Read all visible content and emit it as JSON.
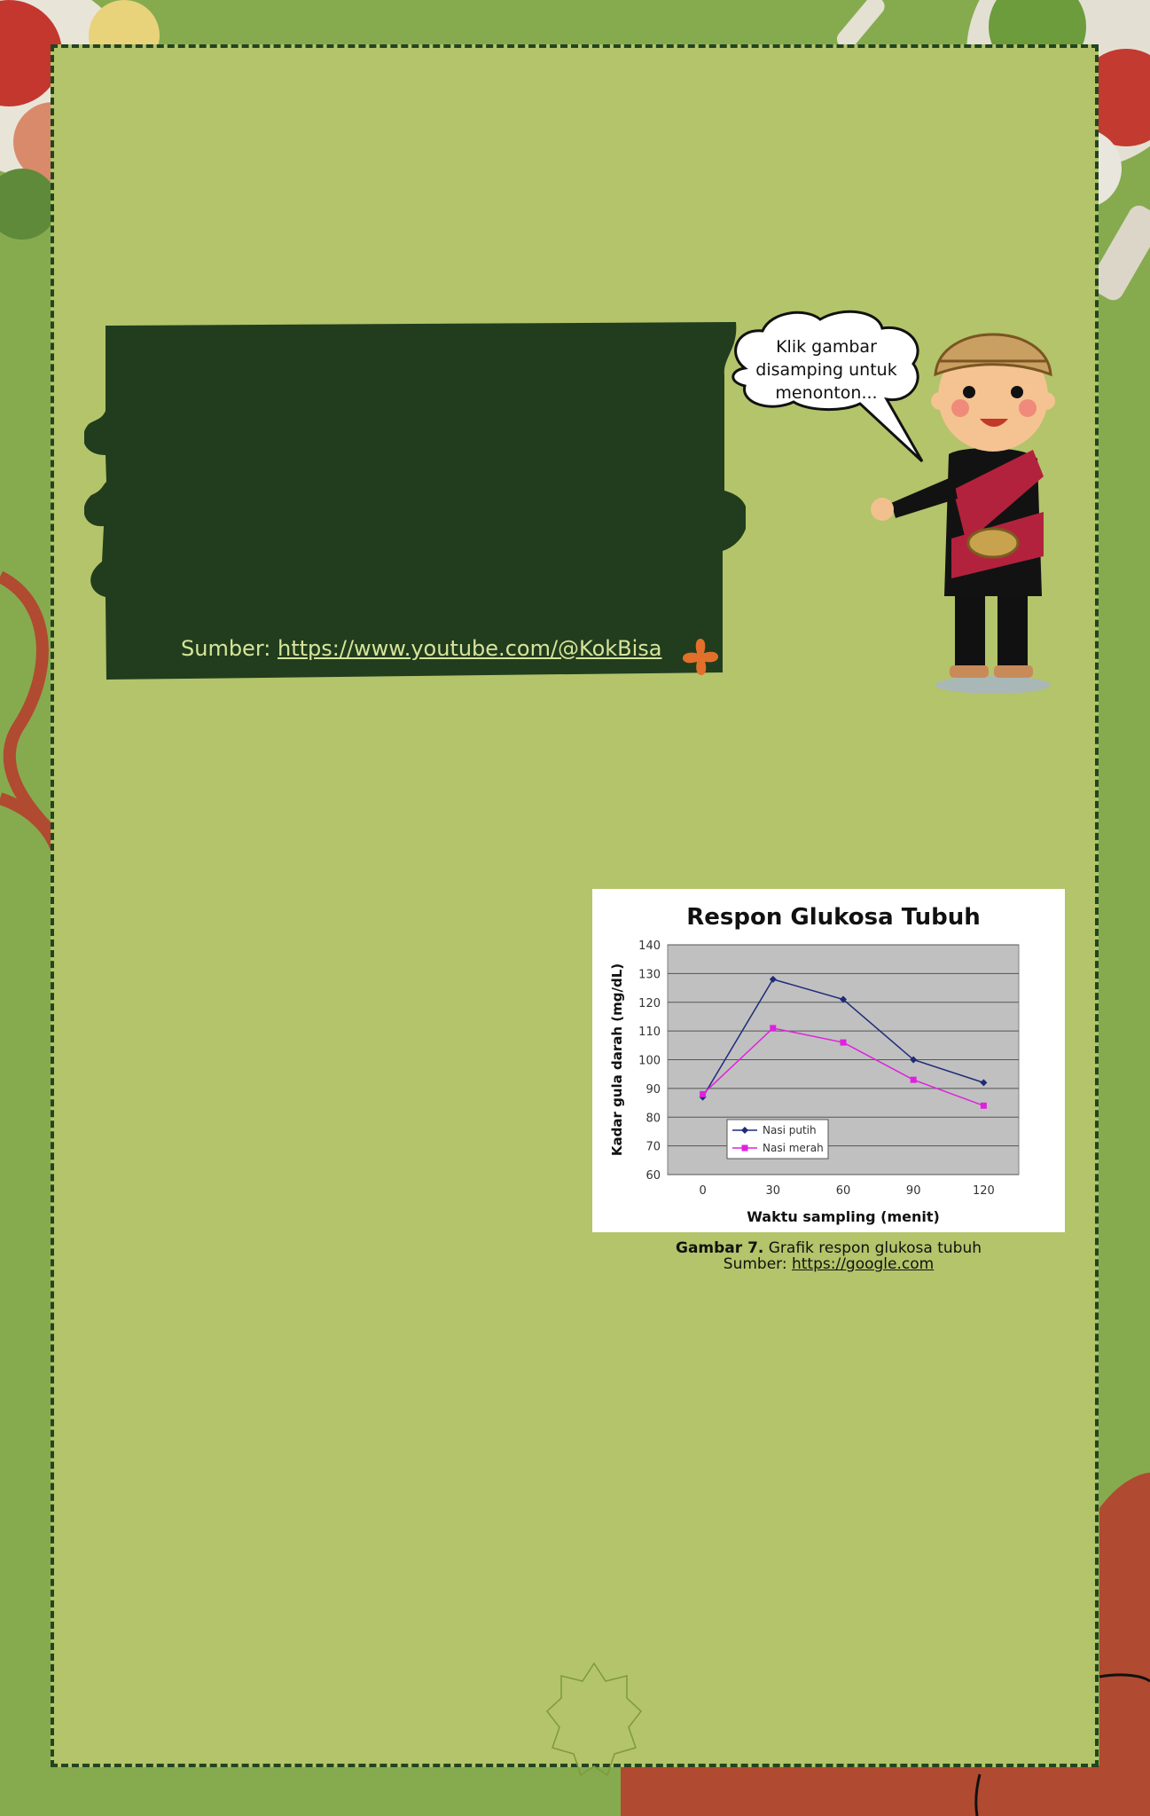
{
  "colors": {
    "outer_green": "#86ab4f",
    "frame_green": "#b3c46a",
    "dark_green": "#213d1e",
    "rust": "#b04a30",
    "series_putih": "#1f2a7a",
    "series_merah": "#e020e0",
    "plot_bg": "#c0c0c0"
  },
  "video": {
    "source_prefix": "Sumber:",
    "source_link": "https://www.youtube.com/@KokBisa",
    "flower_icon": "flower-icon"
  },
  "speech_bubble": {
    "line1": "Klik gambar",
    "line2": "disamping untuk",
    "line3": "menonton..."
  },
  "character": {
    "icon": "traditional-character-icon"
  },
  "chart_data": {
    "type": "line",
    "title": "Respon Glukosa Tubuh",
    "xlabel": "Waktu sampling (menit)",
    "ylabel": "Kadar gula darah (mg/dL)",
    "x": [
      0,
      30,
      60,
      90,
      120
    ],
    "ylim": [
      60,
      140
    ],
    "yticks": [
      60,
      70,
      80,
      90,
      100,
      110,
      120,
      130,
      140
    ],
    "grid": true,
    "legend_position": "bottom-left",
    "series": [
      {
        "name": "Nasi putih",
        "values": [
          87,
          128,
          121,
          100,
          92
        ],
        "color": "#1f2a7a",
        "marker": "diamond"
      },
      {
        "name": "Nasi merah",
        "values": [
          88,
          111,
          106,
          93,
          84
        ],
        "color": "#e020e0",
        "marker": "square"
      }
    ]
  },
  "caption": {
    "label": "Gambar 7.",
    "text": " Grafik respon glukosa tubuh",
    "source_prefix": "Sumber: ",
    "source_link": "https://google.com"
  }
}
